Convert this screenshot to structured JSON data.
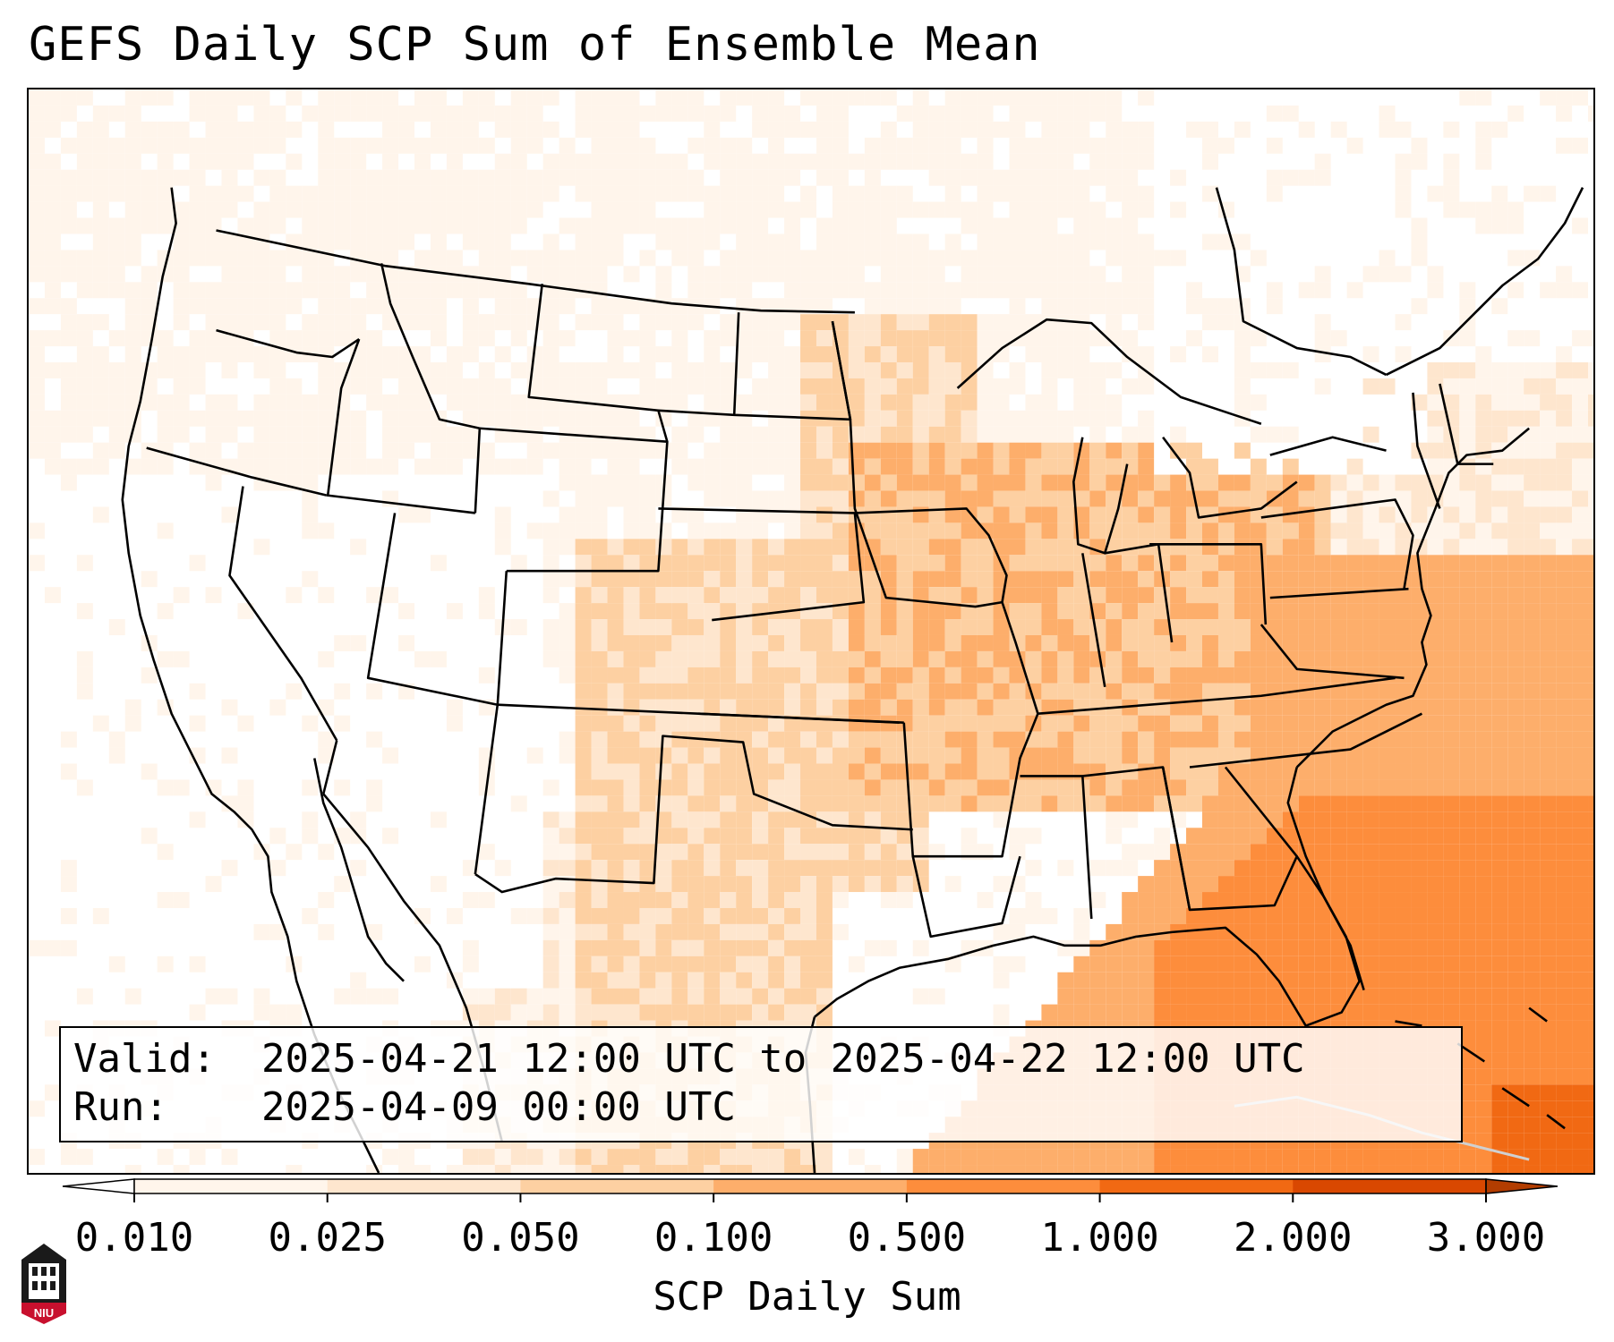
{
  "title": "GEFS Daily SCP Sum of Ensemble Mean",
  "info": {
    "valid_key": "Valid:",
    "valid_value": "2025-04-21 12:00 UTC to 2025-04-22 12:00 UTC",
    "run_key": "Run:",
    "run_value": "2025-04-09 00:00 UTC"
  },
  "colorbar": {
    "label": "SCP Daily Sum",
    "ticks": [
      "0.010",
      "0.025",
      "0.050",
      "0.100",
      "0.500",
      "1.000",
      "2.000",
      "3.000"
    ],
    "colors": [
      "#fff5eb",
      "#fee6ce",
      "#fdd0a2",
      "#fdae6b",
      "#fd8d3c",
      "#f16913",
      "#d94801"
    ]
  },
  "logo": {
    "text": "NIU"
  }
}
